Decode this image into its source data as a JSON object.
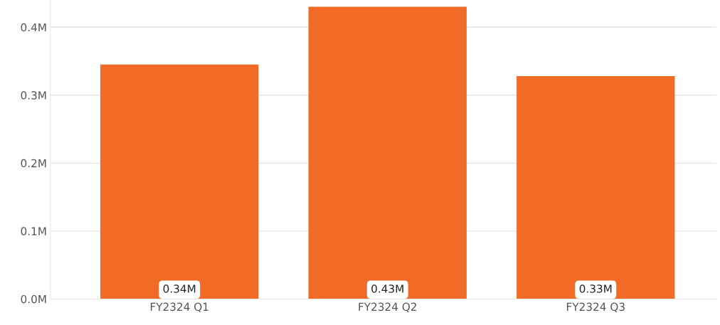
{
  "chart_data": {
    "type": "bar",
    "categories": [
      "FY2324 Q1",
      "FY2324 Q2",
      "FY2324 Q3"
    ],
    "values": [
      0.345,
      0.43,
      0.328
    ],
    "value_labels": [
      "0.34M",
      "0.43M",
      "0.33M"
    ],
    "color": "#f26b26",
    "ylim": [
      0,
      0.44
    ],
    "yticks": [
      {
        "value": 0,
        "label": "0.0M"
      },
      {
        "value": 0.1,
        "label": "0.1M"
      },
      {
        "value": 0.2,
        "label": "0.2M"
      },
      {
        "value": 0.3,
        "label": "0.3M"
      },
      {
        "value": 0.4,
        "label": "0.4M"
      }
    ],
    "grid": "y",
    "legend": false
  }
}
